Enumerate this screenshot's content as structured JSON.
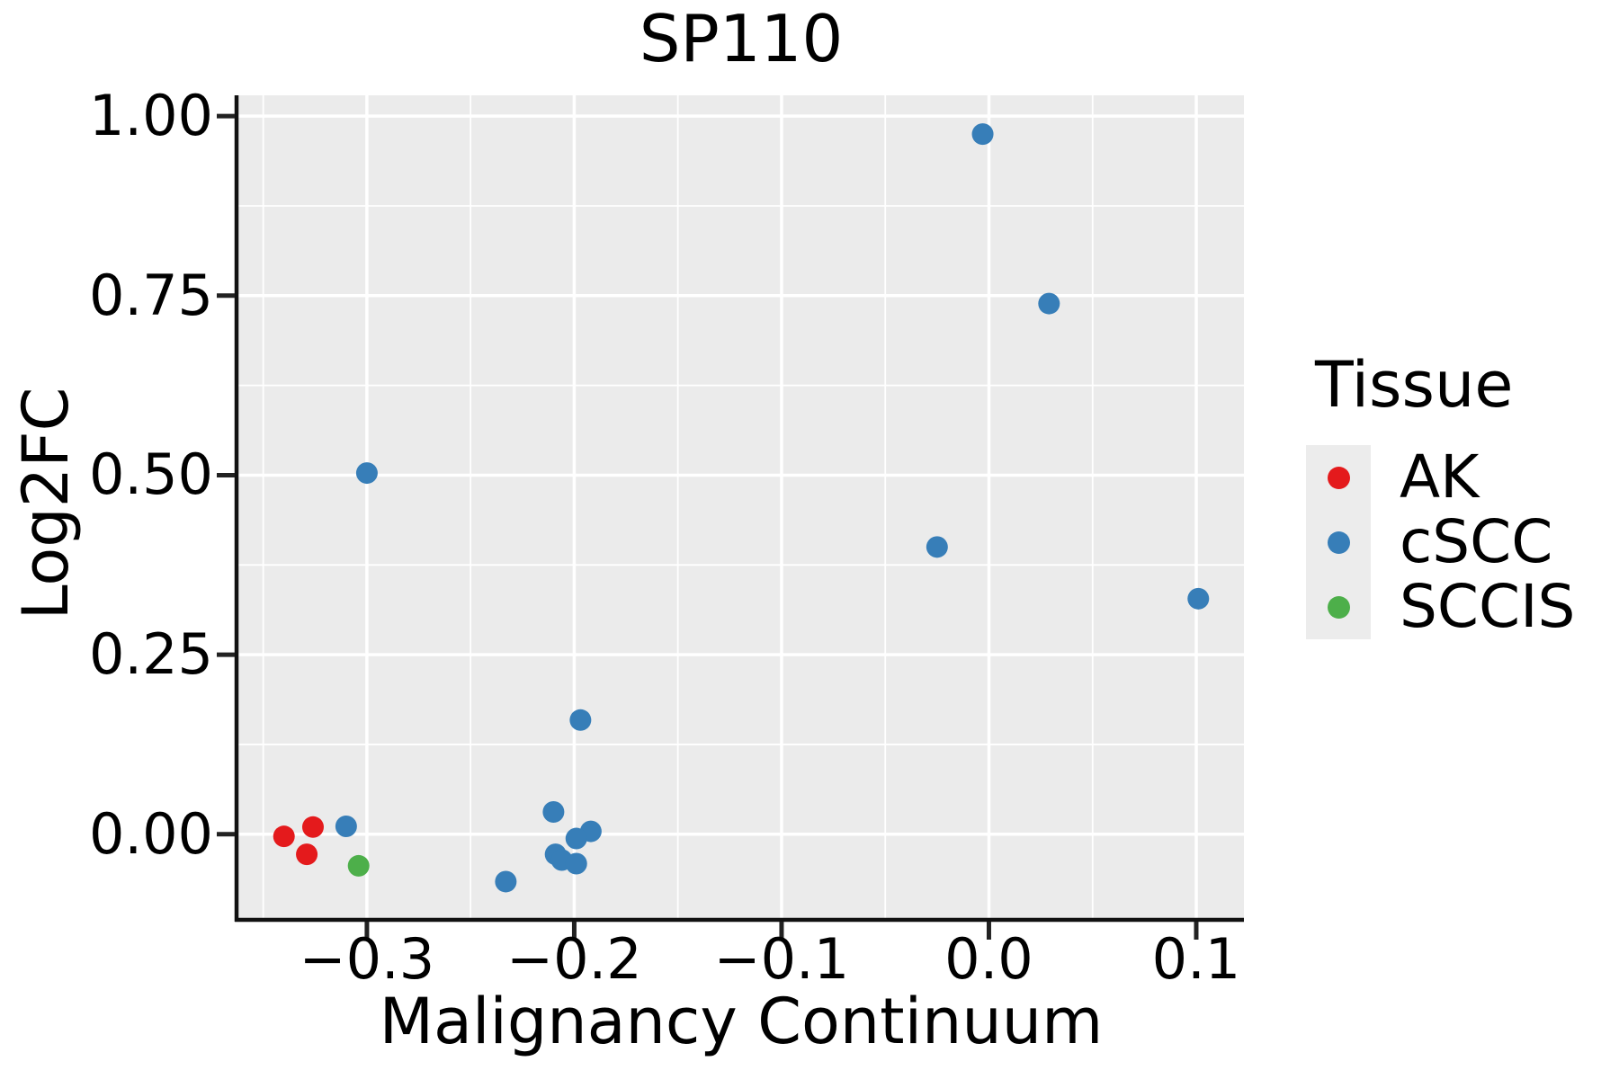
{
  "title": "SP110",
  "x_axis": {
    "label": "Malignancy Continuum",
    "tick_labels": [
      "−0.3",
      "−0.2",
      "−0.1",
      "0.0",
      "0.1"
    ]
  },
  "y_axis": {
    "label": "Log2FC",
    "tick_labels": [
      "1.00",
      "0.75",
      "0.50",
      "0.25",
      "0.00"
    ]
  },
  "legend": {
    "title": "Tissue"
  },
  "colors": {
    "panel_background": "#EBEBEB",
    "gridline": "#FFFFFF",
    "axis_line": "#111111",
    "tick_mark": "#222222",
    "legend_key_background": "#ECECEC",
    "ak": "#E41A1C",
    "cscc": "#377EB8",
    "sccis": "#4DAF4A"
  },
  "chart_data": {
    "type": "scatter",
    "title": "SP110",
    "xlabel": "Malignancy Continuum",
    "ylabel": "Log2FC",
    "xlim": [
      -0.362,
      0.123
    ],
    "ylim": [
      -0.118,
      1.029
    ],
    "x_ticks": [
      -0.3,
      -0.2,
      -0.1,
      0.0,
      0.1
    ],
    "y_ticks": [
      1.0,
      0.75,
      0.5,
      0.25,
      0.0
    ],
    "grid": "white major and minor gridlines on gray panel",
    "legend_position": "right",
    "point_radius_px": 12,
    "series": [
      {
        "name": "AK",
        "color": "#E41A1C",
        "points": [
          [
            -0.34,
            -0.003
          ],
          [
            -0.326,
            0.01
          ],
          [
            -0.329,
            -0.028
          ]
        ]
      },
      {
        "name": "cSCC",
        "color": "#377EB8",
        "points": [
          [
            -0.003,
            0.975
          ],
          [
            0.029,
            0.739
          ],
          [
            -0.3,
            0.503
          ],
          [
            -0.025,
            0.4
          ],
          [
            0.101,
            0.328
          ],
          [
            -0.197,
            0.159
          ],
          [
            -0.21,
            0.031
          ],
          [
            -0.31,
            0.011
          ],
          [
            -0.192,
            0.004
          ],
          [
            -0.199,
            -0.006
          ],
          [
            -0.209,
            -0.028
          ],
          [
            -0.206,
            -0.036
          ],
          [
            -0.199,
            -0.041
          ],
          [
            -0.233,
            -0.066
          ]
        ]
      },
      {
        "name": "SCCIS",
        "color": "#4DAF4A",
        "points": [
          [
            -0.304,
            -0.044
          ]
        ]
      }
    ]
  }
}
